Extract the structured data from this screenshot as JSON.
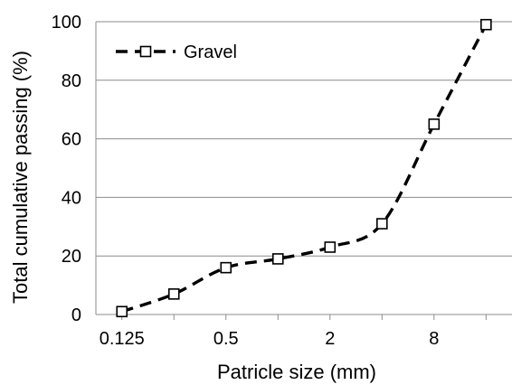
{
  "chart_data": {
    "type": "line",
    "title": "",
    "xlabel": "Patricle size (mm)",
    "ylabel": "Total cumulative passing (%)",
    "x_scale": "log2",
    "x_tick_labels": [
      "0.125",
      "0.5",
      "2",
      "8"
    ],
    "x_tick_values": [
      0.125,
      0.5,
      2,
      8
    ],
    "xlim": [
      0.0884,
      22.6
    ],
    "ylim": [
      0,
      100
    ],
    "y_ticks": [
      0,
      20,
      40,
      60,
      80,
      100
    ],
    "grid": "horizontal",
    "legend": "top-left",
    "series": [
      {
        "name": "Gravel",
        "color": "#000000",
        "line_style": "dashed",
        "marker": "open-square",
        "x": [
          0.125,
          0.25,
          0.5,
          1,
          2,
          4,
          8,
          16
        ],
        "y": [
          1,
          7,
          16,
          19,
          23,
          31,
          65,
          99
        ]
      }
    ]
  }
}
